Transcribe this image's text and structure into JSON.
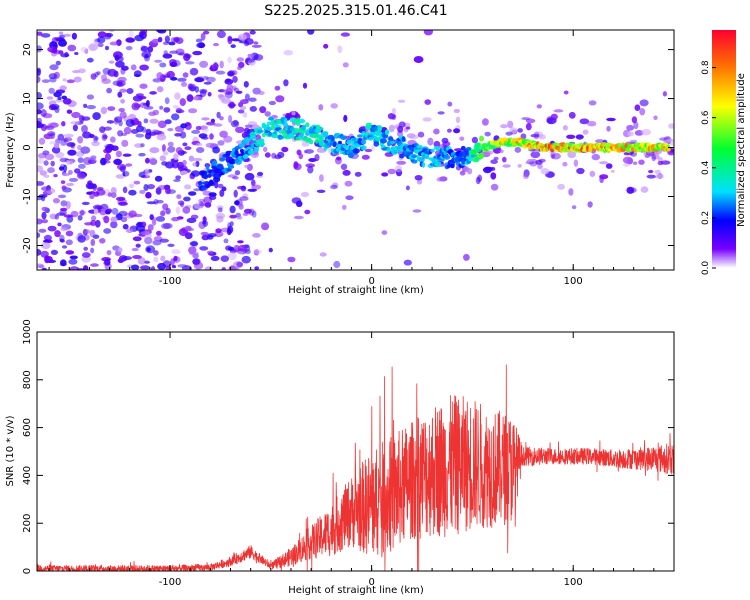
{
  "title": "S225.2025.315.01.46.C41",
  "chart_data": [
    {
      "type": "heatmap",
      "title": "",
      "xlabel": "Height of straight line (km)",
      "ylabel": "Frequency (Hz)",
      "xlim": [
        -166,
        150
      ],
      "ylim": [
        -25,
        24
      ],
      "xticks": [
        -100,
        0,
        100
      ],
      "yticks": [
        -20,
        -10,
        0,
        10,
        20
      ],
      "colorbar": {
        "label": "Normalized spectral amplitude",
        "range": [
          0,
          0.95
        ],
        "ticks": [
          0.0,
          0.2,
          0.4,
          0.6,
          0.8
        ]
      },
      "ridge": [
        {
          "x": -85,
          "freq": -7,
          "amp": 0.25
        },
        {
          "x": -75,
          "freq": -4,
          "amp": 0.3
        },
        {
          "x": -65,
          "freq": -1,
          "amp": 0.3
        },
        {
          "x": -50,
          "freq": 4,
          "amp": 0.4
        },
        {
          "x": -40,
          "freq": 4,
          "amp": 0.45
        },
        {
          "x": -30,
          "freq": 3,
          "amp": 0.45
        },
        {
          "x": -20,
          "freq": 1,
          "amp": 0.35
        },
        {
          "x": -10,
          "freq": 0,
          "amp": 0.35
        },
        {
          "x": 0,
          "freq": 3,
          "amp": 0.4
        },
        {
          "x": 10,
          "freq": 1,
          "amp": 0.35
        },
        {
          "x": 20,
          "freq": -1,
          "amp": 0.35
        },
        {
          "x": 30,
          "freq": -2,
          "amp": 0.35
        },
        {
          "x": 45,
          "freq": -2,
          "amp": 0.3
        },
        {
          "x": 55,
          "freq": 0,
          "amp": 0.6
        },
        {
          "x": 65,
          "freq": 1,
          "amp": 0.75
        },
        {
          "x": 75,
          "freq": 1,
          "amp": 0.85
        },
        {
          "x": 85,
          "freq": 0,
          "amp": 0.9
        },
        {
          "x": 95,
          "freq": 0,
          "amp": 0.95
        },
        {
          "x": 105,
          "freq": 0,
          "amp": 0.9
        },
        {
          "x": 115,
          "freq": 0,
          "amp": 0.9
        },
        {
          "x": 125,
          "freq": 0,
          "amp": 0.85
        },
        {
          "x": 135,
          "freq": 0,
          "amp": 0.85
        },
        {
          "x": 148,
          "freq": 0,
          "amp": 0.8
        }
      ]
    },
    {
      "type": "line",
      "title": "",
      "xlabel": "Height of straight line (km)",
      "ylabel": "SNR (10 * v/v)",
      "xlim": [
        -166,
        150
      ],
      "ylim": [
        0,
        1000
      ],
      "xticks": [
        -100,
        0,
        100
      ],
      "yticks": [
        0,
        200,
        400,
        600,
        800,
        1000
      ],
      "color": "#ee3333",
      "series": [
        {
          "name": "SNR",
          "x": [
            -166,
            -100,
            -80,
            -70,
            -60,
            -55,
            -50,
            -40,
            -30,
            -20,
            -10,
            0,
            10,
            20,
            30,
            40,
            50,
            60,
            70,
            75,
            80,
            90,
            100,
            110,
            120,
            130,
            140,
            150
          ],
          "center": [
            10,
            10,
            15,
            40,
            80,
            50,
            20,
            60,
            120,
            170,
            250,
            280,
            320,
            380,
            420,
            440,
            450,
            430,
            430,
            480,
            480,
            480,
            480,
            480,
            470,
            470,
            470,
            470
          ],
          "spread": [
            15,
            15,
            15,
            20,
            30,
            20,
            15,
            40,
            70,
            110,
            150,
            230,
            250,
            250,
            280,
            300,
            280,
            250,
            230,
            40,
            40,
            35,
            35,
            35,
            40,
            45,
            55,
            70
          ]
        }
      ]
    }
  ]
}
